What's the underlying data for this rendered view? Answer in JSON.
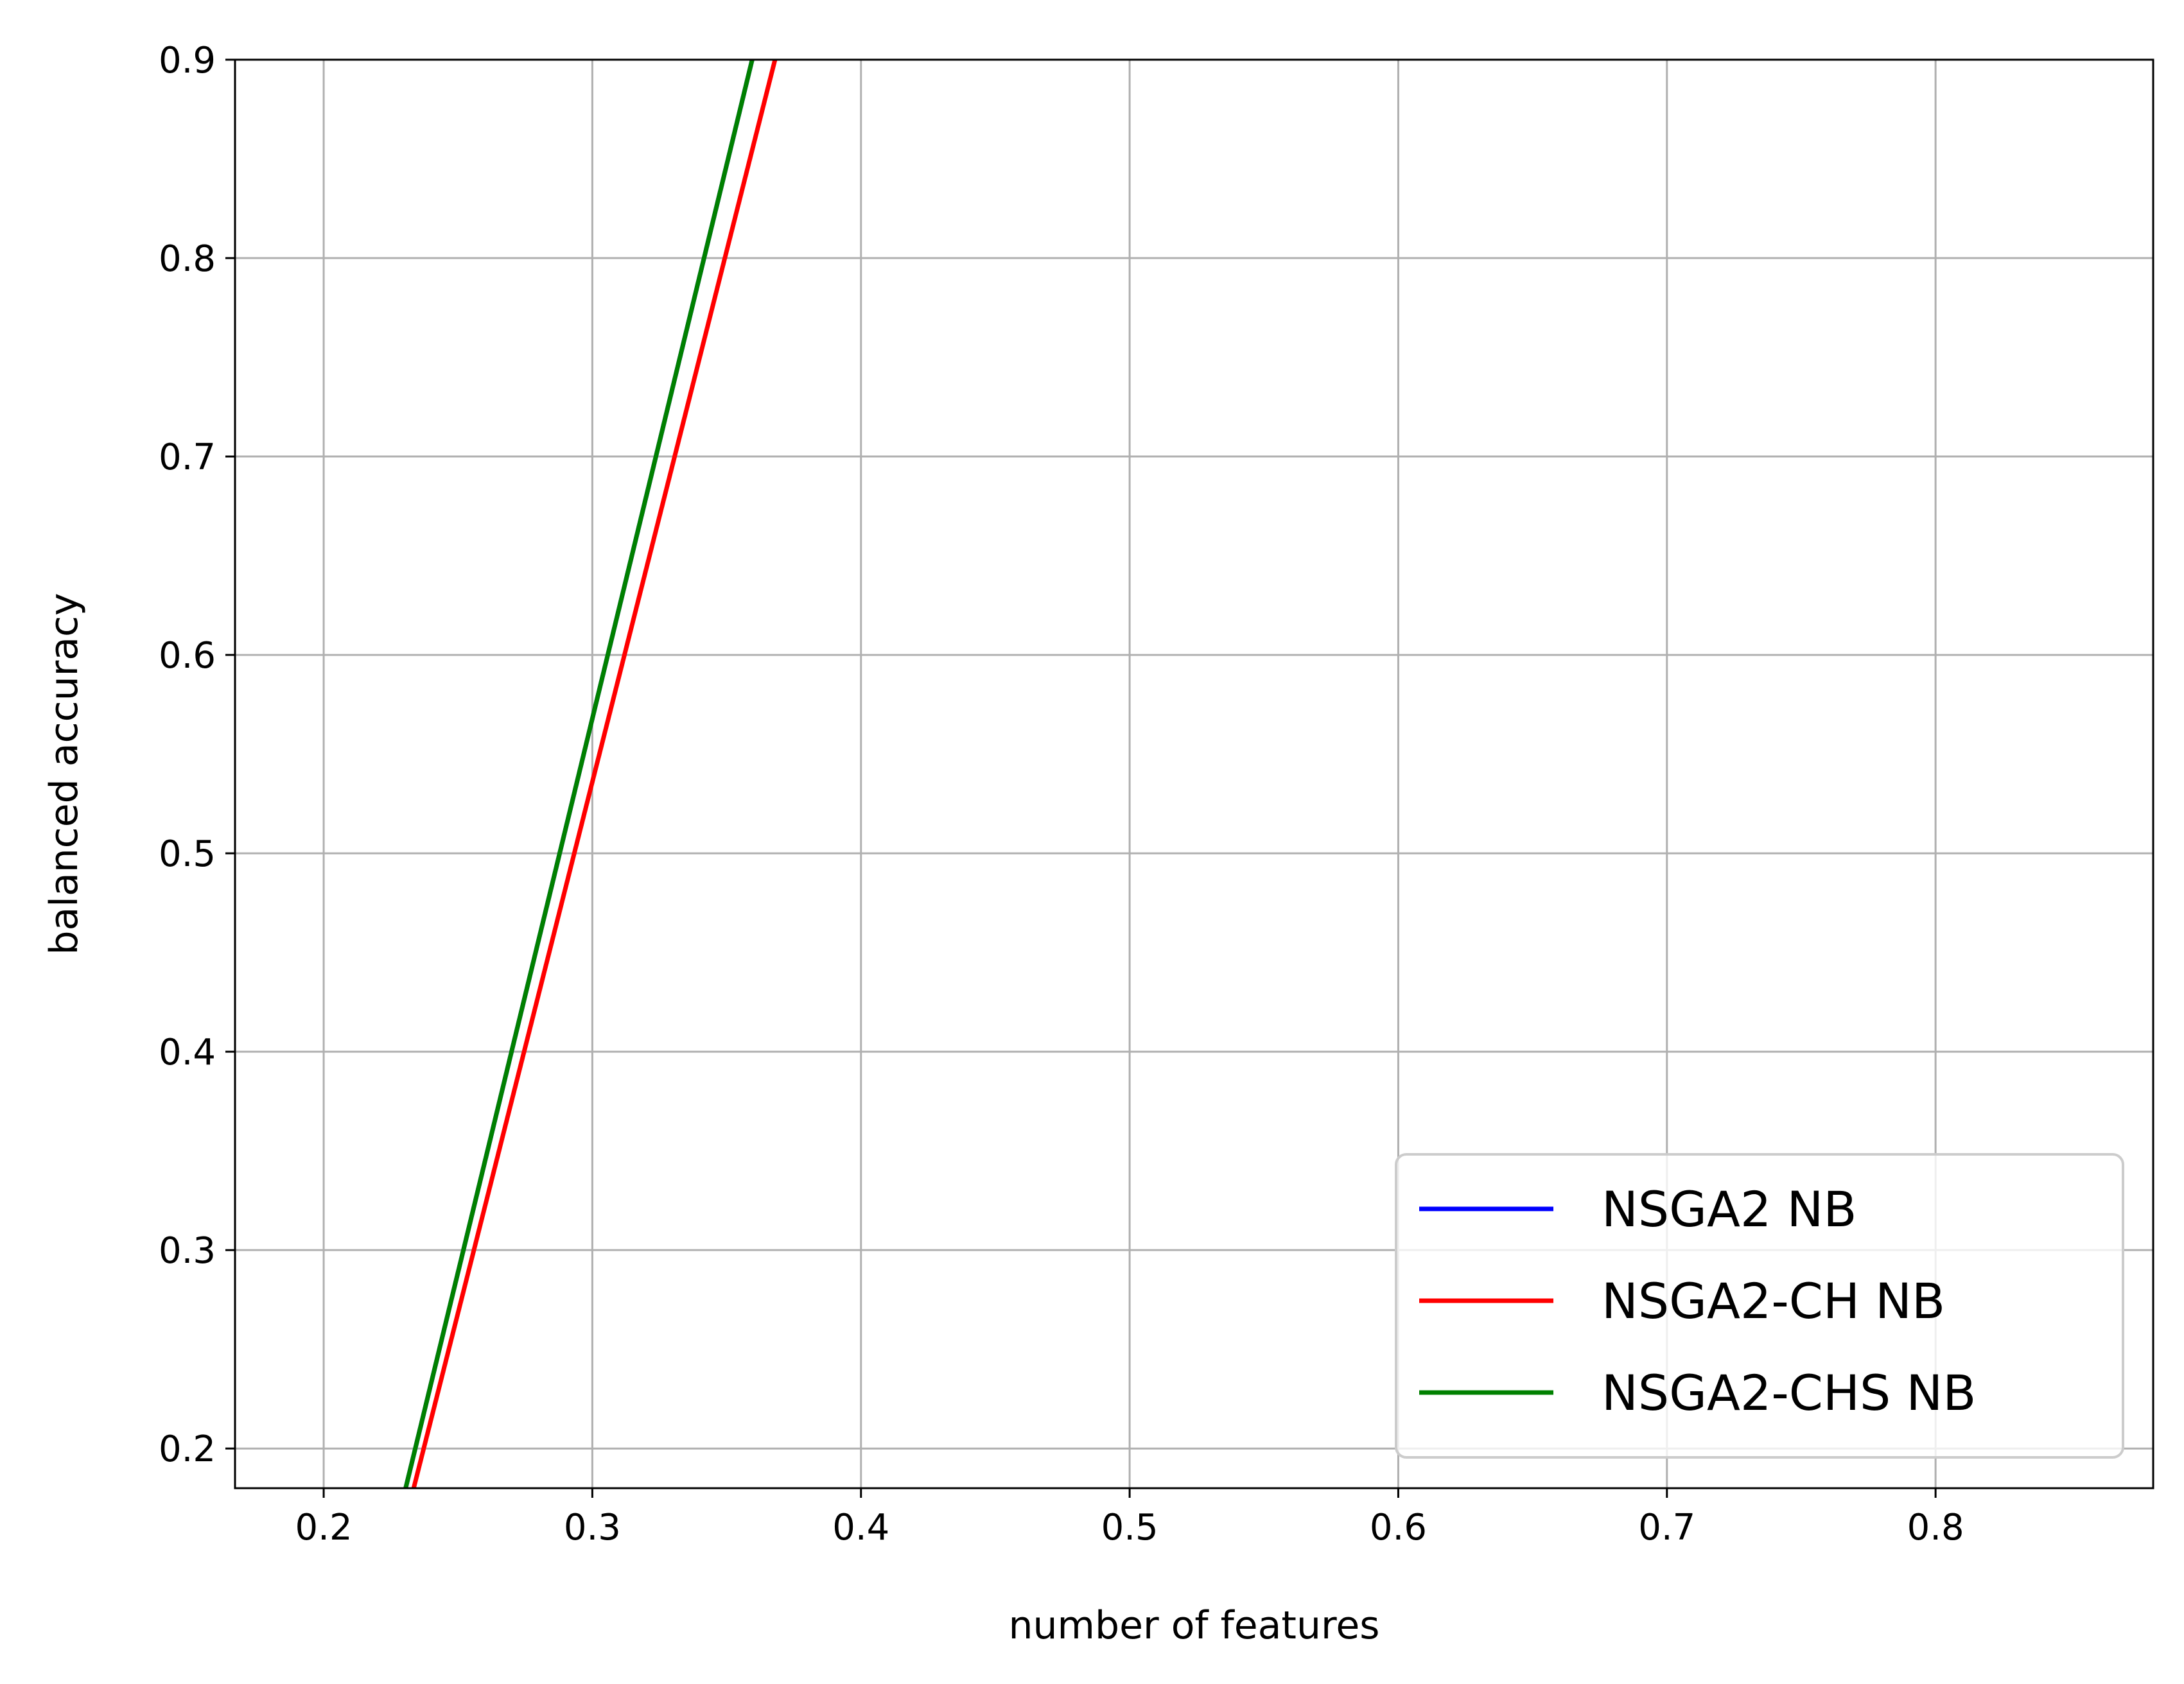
{
  "chart_data": {
    "type": "line",
    "title": "",
    "xlabel": "number of features",
    "ylabel": "balanced accuracy",
    "xlim": [
      0.167,
      0.881
    ],
    "ylim": [
      0.18,
      0.9
    ],
    "xticks": [
      {
        "value": 0.2,
        "label": "0.2"
      },
      {
        "value": 0.3,
        "label": "0.3"
      },
      {
        "value": 0.4,
        "label": "0.4"
      },
      {
        "value": 0.5,
        "label": "0.5"
      },
      {
        "value": 0.6,
        "label": "0.6"
      },
      {
        "value": 0.7,
        "label": "0.7"
      },
      {
        "value": 0.8,
        "label": "0.8"
      }
    ],
    "yticks": [
      {
        "value": 0.2,
        "label": "0.2"
      },
      {
        "value": 0.3,
        "label": "0.3"
      },
      {
        "value": 0.4,
        "label": "0.4"
      },
      {
        "value": 0.5,
        "label": "0.5"
      },
      {
        "value": 0.6,
        "label": "0.6"
      },
      {
        "value": 0.7,
        "label": "0.7"
      },
      {
        "value": 0.8,
        "label": "0.8"
      },
      {
        "value": 0.9,
        "label": "0.9"
      }
    ],
    "grid": true,
    "legend_position": "lower-right",
    "series": [
      {
        "name": "NSGA2 NB",
        "color": "#0000ff",
        "x": [
          0.2305,
          0.3595
        ],
        "y": [
          0.18,
          0.9
        ]
      },
      {
        "name": "NSGA2-CH NB",
        "color": "#ff0000",
        "x": [
          0.2335,
          0.368
        ],
        "y": [
          0.18,
          0.9
        ]
      },
      {
        "name": "NSGA2-CHS NB",
        "color": "#008000",
        "x": [
          0.2305,
          0.3595
        ],
        "y": [
          0.18,
          0.9
        ]
      }
    ]
  }
}
